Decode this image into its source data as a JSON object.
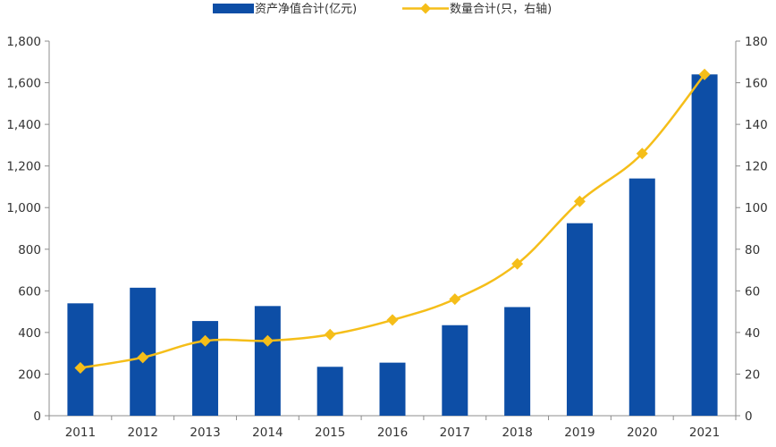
{
  "chart_data": {
    "type": "bar+line",
    "title": "",
    "categories": [
      "2011",
      "2012",
      "2013",
      "2014",
      "2015",
      "2016",
      "2017",
      "2018",
      "2019",
      "2020",
      "2021"
    ],
    "series": [
      {
        "name": "资产净值合计(亿元)",
        "type": "bar",
        "axis": "left",
        "color": "#0D4EA6",
        "values": [
          540,
          615,
          455,
          527,
          235,
          255,
          435,
          522,
          925,
          1140,
          1640
        ]
      },
      {
        "name": "数量合计(只，右轴)",
        "type": "line",
        "axis": "right",
        "color": "#F5BE19",
        "marker": "diamond",
        "values": [
          23,
          28,
          36,
          36,
          39,
          46,
          56,
          73,
          103,
          126,
          164
        ]
      }
    ],
    "y_left": {
      "min": 0,
      "max": 1800,
      "ticks": [
        "0",
        "200",
        "400",
        "600",
        "800",
        "1,000",
        "1,200",
        "1,400",
        "1,600",
        "1,800"
      ]
    },
    "y_right": {
      "min": 0,
      "max": 180,
      "ticks": [
        "0",
        "20",
        "40",
        "60",
        "80",
        "100",
        "120",
        "140",
        "160",
        "180"
      ]
    },
    "legend_position": "top-center",
    "grid": false
  }
}
